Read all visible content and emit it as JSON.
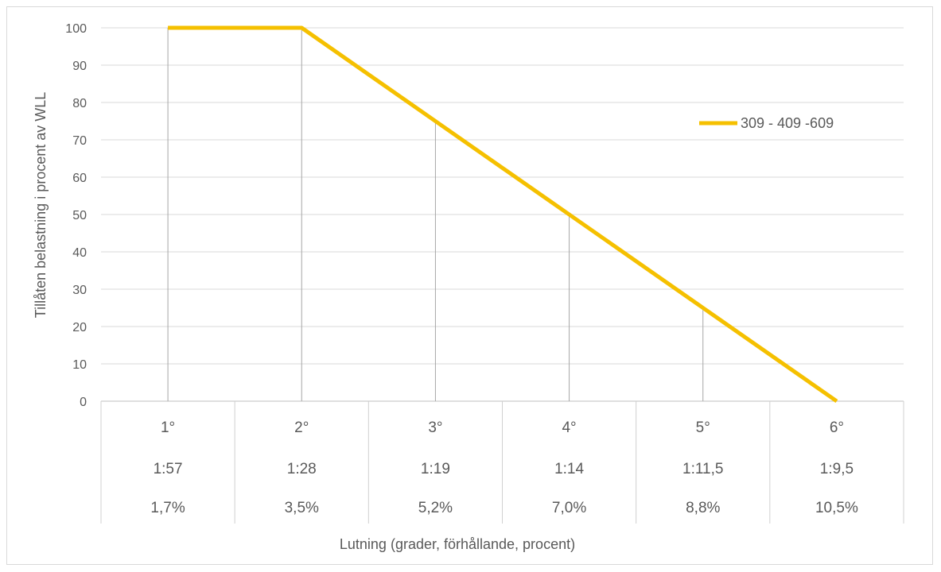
{
  "chart_data": {
    "type": "line",
    "categories": [
      [
        "1°",
        "1:57",
        "1,7%"
      ],
      [
        "2°",
        "1:28",
        "3,5%"
      ],
      [
        "3°",
        "1:19",
        "5,2%"
      ],
      [
        "4°",
        "1:14",
        "7,0%"
      ],
      [
        "5°",
        "1:11,5",
        "8,8%"
      ],
      [
        "6°",
        "1:9,5",
        "10,5%"
      ]
    ],
    "series": [
      {
        "name": "309 - 409 -609",
        "values": [
          100,
          100,
          75,
          50,
          25,
          0
        ],
        "color": "#f5c000"
      }
    ],
    "drop_lines": true,
    "xlabel": "Lutning (grader, förhållande, procent)",
    "ylabel": "Tillåten belastning i procent av WLL",
    "ylim": [
      0,
      100
    ],
    "yticks": [
      0,
      10,
      20,
      30,
      40,
      50,
      60,
      70,
      80,
      90,
      100
    ],
    "grid": true,
    "legend_position": "right"
  }
}
